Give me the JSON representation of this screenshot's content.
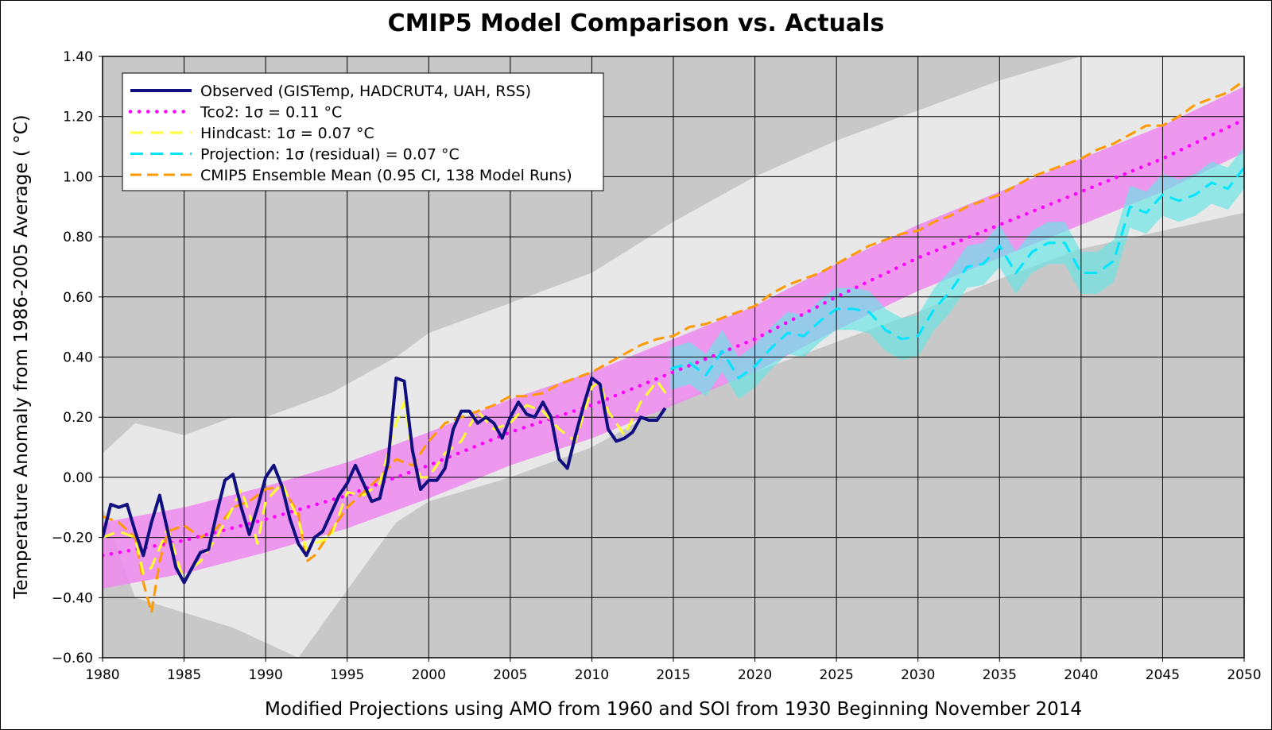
{
  "chart_data": {
    "type": "line",
    "title": "CMIP5 Model Comparison vs. Actuals",
    "xlabel": "Modified Projections using AMO from 1960 and SOI from 1930 Beginning November 2014",
    "ylabel": "Temperature Anomaly from 1986-2005 Average ( °C)",
    "xlim": [
      1980,
      2050
    ],
    "ylim": [
      -0.6,
      1.4
    ],
    "xticks": [
      1980,
      1985,
      1990,
      1995,
      2000,
      2005,
      2010,
      2015,
      2020,
      2025,
      2030,
      2035,
      2040,
      2045,
      2050
    ],
    "yticks": [
      -0.6,
      -0.4,
      -0.2,
      0.0,
      0.2,
      0.4,
      0.6,
      0.8,
      1.0,
      1.2,
      1.4
    ],
    "ytick_labels": [
      "−0.60",
      "−0.40",
      "−0.20",
      "0.00",
      "0.20",
      "0.40",
      "0.60",
      "0.80",
      "1.00",
      "1.20",
      "1.40"
    ],
    "grid": true,
    "legend_position": "top-left",
    "colors": {
      "background": "#c8c8c8",
      "ci_band": "#e8e8e8",
      "observed": "#0f0f80",
      "tco2": "#ff00ff",
      "tco2_band": "#ee88ee",
      "hindcast": "#ffff33",
      "projection": "#00e5ff",
      "projection_band": "#66e5e5",
      "cmip5": "#ff9900",
      "grid": "#000000"
    },
    "series": [
      {
        "name": "Observed (GISTemp, HADCRUT4, UAH, RSS)",
        "style": "solid",
        "x": [
          1980,
          1980.5,
          1981,
          1981.5,
          1982,
          1982.5,
          1983,
          1983.5,
          1984,
          1984.5,
          1985,
          1985.5,
          1986,
          1986.5,
          1987,
          1987.5,
          1988,
          1988.5,
          1989,
          1989.5,
          1990,
          1990.5,
          1991,
          1991.5,
          1992,
          1992.5,
          1993,
          1993.5,
          1994,
          1994.5,
          1995,
          1995.5,
          1996,
          1996.5,
          1997,
          1997.5,
          1998,
          1998.5,
          1999,
          1999.5,
          2000,
          2000.5,
          2001,
          2001.5,
          2002,
          2002.5,
          2003,
          2003.5,
          2004,
          2004.5,
          2005,
          2005.5,
          2006,
          2006.5,
          2007,
          2007.5,
          2008,
          2008.5,
          2009,
          2009.5,
          2010,
          2010.5,
          2011,
          2011.5,
          2012,
          2012.5,
          2013,
          2013.5,
          2014,
          2014.5
        ],
        "values": [
          -0.2,
          -0.09,
          -0.1,
          -0.09,
          -0.18,
          -0.26,
          -0.15,
          -0.06,
          -0.18,
          -0.3,
          -0.35,
          -0.3,
          -0.25,
          -0.24,
          -0.12,
          -0.01,
          0.01,
          -0.1,
          -0.19,
          -0.1,
          0.0,
          0.04,
          -0.03,
          -0.14,
          -0.22,
          -0.26,
          -0.2,
          -0.18,
          -0.12,
          -0.06,
          -0.02,
          0.04,
          -0.02,
          -0.08,
          -0.07,
          0.05,
          0.33,
          0.32,
          0.09,
          -0.04,
          -0.01,
          -0.01,
          0.03,
          0.16,
          0.22,
          0.22,
          0.18,
          0.2,
          0.18,
          0.13,
          0.2,
          0.25,
          0.21,
          0.2,
          0.25,
          0.2,
          0.06,
          0.03,
          0.14,
          0.24,
          0.33,
          0.31,
          0.16,
          0.12,
          0.13,
          0.15,
          0.2,
          0.19,
          0.19,
          0.23
        ]
      },
      {
        "name": "Tco2: 1σ = 0.11 °C",
        "style": "dotted",
        "x": [
          1980,
          1985,
          1990,
          1995,
          2000,
          2005,
          2010,
          2015,
          2020,
          2025,
          2030,
          2035,
          2040,
          2045,
          2050
        ],
        "values": [
          -0.26,
          -0.21,
          -0.14,
          -0.06,
          0.04,
          0.15,
          0.24,
          0.35,
          0.46,
          0.6,
          0.73,
          0.84,
          0.95,
          1.06,
          1.19
        ],
        "band_sigma": 0.11
      },
      {
        "name": "Hindcast: 1σ = 0.07 °C",
        "style": "dashed",
        "x": [
          1980,
          1981,
          1982,
          1982.5,
          1983,
          1984,
          1985,
          1985.5,
          1986,
          1987,
          1988,
          1988.5,
          1989,
          1989.5,
          1990,
          1991,
          1992,
          1992.5,
          1993,
          1994,
          1995,
          1996,
          1997,
          1998,
          1998.5,
          1999,
          1999.5,
          2000,
          2001,
          2002,
          2003,
          2004,
          2005,
          2006,
          2007,
          2008,
          2009,
          2010,
          2010.5,
          2011,
          2012,
          2013,
          2014,
          2014.8
        ],
        "values": [
          -0.2,
          -0.18,
          -0.2,
          -0.32,
          -0.3,
          -0.17,
          -0.35,
          -0.3,
          -0.28,
          -0.2,
          -0.1,
          -0.04,
          -0.12,
          -0.22,
          -0.08,
          -0.02,
          -0.14,
          -0.24,
          -0.22,
          -0.2,
          -0.05,
          -0.06,
          -0.02,
          0.18,
          0.25,
          0.08,
          0.0,
          0.0,
          0.08,
          0.12,
          0.22,
          0.16,
          0.18,
          0.24,
          0.22,
          0.16,
          0.12,
          0.3,
          0.32,
          0.22,
          0.14,
          0.25,
          0.32,
          0.26
        ]
      },
      {
        "name": "Projection: 1σ (residual) = 0.07 °C",
        "style": "dashed",
        "x": [
          2014.8,
          2016,
          2017,
          2018,
          2019,
          2020,
          2021,
          2022,
          2023,
          2024,
          2025,
          2026,
          2027,
          2028,
          2029,
          2030,
          2031,
          2032,
          2033,
          2034,
          2035,
          2036,
          2037,
          2038,
          2039,
          2040,
          2041,
          2042,
          2043,
          2044,
          2045,
          2046,
          2047,
          2048,
          2049,
          2050
        ],
        "values": [
          0.36,
          0.38,
          0.34,
          0.42,
          0.33,
          0.37,
          0.43,
          0.48,
          0.47,
          0.52,
          0.56,
          0.56,
          0.55,
          0.49,
          0.46,
          0.47,
          0.56,
          0.62,
          0.7,
          0.71,
          0.77,
          0.68,
          0.75,
          0.78,
          0.78,
          0.68,
          0.68,
          0.72,
          0.9,
          0.88,
          0.94,
          0.92,
          0.94,
          0.98,
          0.96,
          1.03
        ],
        "band_sigma": 0.07
      },
      {
        "name": "CMIP5 Ensemble Mean (0.95 CI, 138 Model Runs)",
        "style": "dashed",
        "x": [
          1980,
          1981,
          1982,
          1982.5,
          1983,
          1983.5,
          1984,
          1985,
          1986,
          1987,
          1988,
          1989,
          1990,
          1991,
          1992,
          1992.5,
          1993,
          1994,
          1995,
          1996,
          1997,
          1998,
          1999,
          2000,
          2001,
          2002,
          2003,
          2004,
          2005,
          2006,
          2007,
          2008,
          2009,
          2010,
          2011,
          2012,
          2013,
          2014,
          2015,
          2016,
          2017,
          2018,
          2019,
          2020,
          2021,
          2022,
          2023,
          2024,
          2025,
          2026,
          2027,
          2028,
          2029,
          2030,
          2031,
          2032,
          2033,
          2034,
          2035,
          2036,
          2037,
          2038,
          2039,
          2040,
          2041,
          2042,
          2043,
          2044,
          2045,
          2046,
          2047,
          2048,
          2049,
          2050
        ],
        "values": [
          -0.13,
          -0.15,
          -0.2,
          -0.35,
          -0.45,
          -0.28,
          -0.18,
          -0.16,
          -0.2,
          -0.17,
          -0.1,
          -0.08,
          -0.04,
          -0.03,
          -0.12,
          -0.28,
          -0.26,
          -0.18,
          -0.1,
          -0.05,
          0.0,
          0.06,
          0.04,
          0.12,
          0.18,
          0.2,
          0.22,
          0.24,
          0.27,
          0.27,
          0.28,
          0.31,
          0.33,
          0.35,
          0.38,
          0.41,
          0.44,
          0.46,
          0.47,
          0.5,
          0.51,
          0.53,
          0.55,
          0.57,
          0.61,
          0.64,
          0.66,
          0.68,
          0.71,
          0.74,
          0.77,
          0.79,
          0.81,
          0.82,
          0.85,
          0.87,
          0.9,
          0.92,
          0.94,
          0.97,
          1.0,
          1.02,
          1.04,
          1.06,
          1.09,
          1.11,
          1.14,
          1.17,
          1.17,
          1.2,
          1.24,
          1.26,
          1.28,
          1.32
        ]
      }
    ],
    "ci_band": {
      "x": [
        1980,
        1982,
        1985,
        1988,
        1990,
        1992,
        1994,
        1996,
        1998,
        2000,
        2005,
        2010,
        2015,
        2020,
        2025,
        2030,
        2035,
        2040,
        2045,
        2050
      ],
      "upper": [
        0.08,
        0.18,
        0.14,
        0.2,
        0.2,
        0.24,
        0.28,
        0.34,
        0.4,
        0.48,
        0.58,
        0.68,
        0.85,
        1.0,
        1.12,
        1.22,
        1.32,
        1.4,
        1.4,
        1.4
      ],
      "lower": [
        -0.1,
        -0.4,
        -0.45,
        -0.5,
        -0.55,
        -0.6,
        -0.45,
        -0.3,
        -0.15,
        -0.08,
        0.0,
        0.1,
        0.25,
        0.35,
        0.45,
        0.55,
        0.66,
        0.76,
        0.82,
        0.88
      ]
    }
  }
}
